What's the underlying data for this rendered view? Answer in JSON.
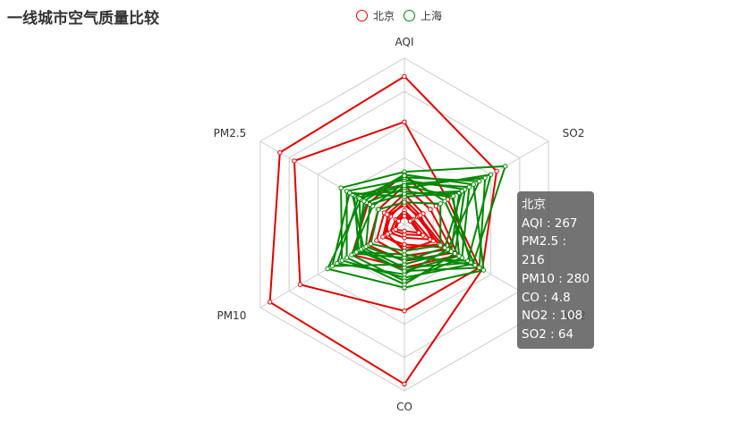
{
  "title": "一线城市空气质量比较",
  "legend": [
    {
      "name": "北京",
      "color": "#e00000"
    },
    {
      "name": "上海",
      "color": "#008800"
    }
  ],
  "tooltip": {
    "header": "北京",
    "lines": [
      "AQI : 267",
      "PM2.5 : 216",
      "PM10 : 280",
      "CO : 4.8",
      "NO2 : 108",
      "SO2 : 64"
    ]
  },
  "chart_data": {
    "type": "radar",
    "indicators": [
      {
        "name": "AQI",
        "max": 300
      },
      {
        "name": "SO2",
        "max": 100
      },
      {
        "name": "NO2",
        "max": 200
      },
      {
        "name": "CO",
        "max": 5
      },
      {
        "name": "PM10",
        "max": 300
      },
      {
        "name": "PM2.5",
        "max": 250
      }
    ],
    "series": [
      {
        "name": "北京",
        "color": "#e00000",
        "data": [
          [
            267,
            64,
            108,
            4.8,
            280,
            216
          ],
          [
            185,
            30,
            104,
            2.6,
            217,
            191
          ],
          [
            90,
            22,
            74,
            1.3,
            109,
            63
          ],
          [
            55,
            13,
            60,
            0.95,
            58,
            35
          ],
          [
            70,
            18,
            68,
            1.1,
            75,
            45
          ],
          [
            40,
            9,
            48,
            0.7,
            42,
            24
          ],
          [
            35,
            10,
            55,
            0.6,
            45,
            28
          ],
          [
            25,
            6,
            36,
            0.4,
            30,
            15
          ],
          [
            20,
            5,
            26,
            0.3,
            22,
            12
          ],
          [
            15,
            4,
            20,
            0.2,
            18,
            10
          ],
          [
            45,
            11,
            40,
            0.8,
            35,
            30
          ]
        ]
      },
      {
        "name": "上海",
        "color": "#008800",
        "data": [
          [
            95,
            70,
            95,
            1.6,
            130,
            110
          ],
          [
            90,
            48,
            110,
            1.9,
            160,
            75
          ],
          [
            72,
            56,
            104,
            1.4,
            95,
            87
          ],
          [
            80,
            42,
            70,
            1.8,
            120,
            100
          ],
          [
            65,
            60,
            88,
            1.0,
            105,
            66
          ],
          [
            85,
            52,
            60,
            1.5,
            140,
            80
          ],
          [
            60,
            33,
            92,
            1.3,
            85,
            90
          ],
          [
            75,
            45,
            80,
            1.7,
            110,
            55
          ],
          [
            50,
            38,
            65,
            1.2,
            150,
            95
          ],
          [
            88,
            28,
            98,
            0.9,
            100,
            70
          ],
          [
            55,
            40,
            56,
            1.1,
            80,
            60
          ],
          [
            40,
            25,
            50,
            0.8,
            70,
            45
          ],
          [
            70,
            34,
            76,
            1.4,
            90,
            78
          ]
        ]
      }
    ]
  }
}
